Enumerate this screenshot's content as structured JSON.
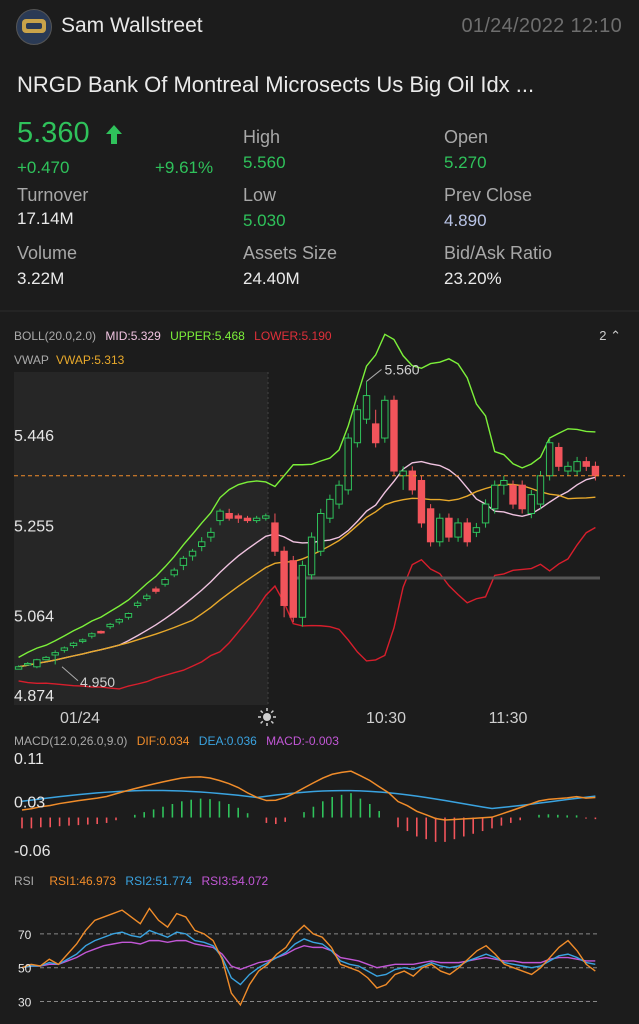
{
  "header": {
    "username": "Sam Wallstreet",
    "datetime": "01/24/2022  12:10"
  },
  "stock": {
    "symbol_name": "NRGD  Bank Of Montreal Microsects Us Big Oil Idx ...",
    "price": "5.360",
    "change": "+0.470",
    "change_pct": "+9.61%"
  },
  "stats": {
    "turnover_label": "Turnover",
    "turnover": "17.14M",
    "volume_label": "Volume",
    "volume": "3.22M",
    "high_label": "High",
    "high": "5.560",
    "low_label": "Low",
    "low": "5.030",
    "assets_label": "Assets Size",
    "assets": "24.40M",
    "open_label": "Open",
    "open": "5.270",
    "prev_close_label": "Prev Close",
    "prev_close": "4.890",
    "bidask_label": "Bid/Ask Ratio",
    "bidask": "23.20%"
  },
  "indicators": {
    "boll": {
      "name": "BOLL(20.0,2.0)",
      "mid": "MID:5.329",
      "upper": "UPPER:5.468",
      "lower": "LOWER:5.190"
    },
    "vwap": {
      "name": "VWAP",
      "value": "VWAP:5.313"
    },
    "macd": {
      "name": "MACD(12.0,26.0,9.0)",
      "dif": "DIF:0.034",
      "dea": "DEA:0.036",
      "macd": "MACD:-0.003"
    },
    "rsi": {
      "name": "RSI",
      "rsi1": "RSI1:46.973",
      "rsi2": "RSI2:51.774",
      "rsi3": "RSI3:54.072"
    },
    "collapse_label": "2"
  },
  "colors": {
    "up": "#2fc25b",
    "down": "#f2545b",
    "upper": "#7cf03a",
    "lower": "#d81e2c",
    "mid": "#f0c3e0",
    "vwap": "#e8a92b",
    "dif": "#f08c2a",
    "dea": "#3aa3e0",
    "macd": "#c257d6"
  },
  "chart_data": [
    {
      "type": "candlestick",
      "title": "",
      "y_ticks": [
        "5.446",
        "5.255",
        "5.064",
        "4.874"
      ],
      "x_ticks": [
        "01/24",
        "10:30",
        "11:30"
      ],
      "ylim": [
        4.874,
        5.58
      ],
      "max_label": "5.560",
      "min_label": "4.950",
      "last_price": 5.36,
      "candles": [
        {
          "o": 4.95,
          "c": 4.955,
          "h": 4.958,
          "l": 4.95
        },
        {
          "o": 4.96,
          "c": 4.962,
          "h": 4.965,
          "l": 4.958
        },
        {
          "o": 4.955,
          "c": 4.97,
          "h": 4.972,
          "l": 4.952
        },
        {
          "o": 4.97,
          "c": 4.975,
          "h": 4.978,
          "l": 4.968
        },
        {
          "o": 4.98,
          "c": 4.985,
          "h": 4.99,
          "l": 4.96
        },
        {
          "o": 4.99,
          "c": 4.995,
          "h": 4.998,
          "l": 4.985
        },
        {
          "o": 5.0,
          "c": 5.005,
          "h": 5.008,
          "l": 4.995
        },
        {
          "o": 5.01,
          "c": 5.012,
          "h": 5.015,
          "l": 5.005
        },
        {
          "o": 5.02,
          "c": 5.025,
          "h": 5.028,
          "l": 5.015
        },
        {
          "o": 5.03,
          "c": 5.028,
          "h": 5.032,
          "l": 5.025
        },
        {
          "o": 5.04,
          "c": 5.045,
          "h": 5.048,
          "l": 5.035
        },
        {
          "o": 5.05,
          "c": 5.055,
          "h": 5.058,
          "l": 5.045
        },
        {
          "o": 5.06,
          "c": 5.068,
          "h": 5.07,
          "l": 5.055
        },
        {
          "o": 5.085,
          "c": 5.09,
          "h": 5.095,
          "l": 5.08
        },
        {
          "o": 5.1,
          "c": 5.105,
          "h": 5.11,
          "l": 5.095
        },
        {
          "o": 5.12,
          "c": 5.115,
          "h": 5.125,
          "l": 5.11
        },
        {
          "o": 5.13,
          "c": 5.14,
          "h": 5.145,
          "l": 5.125
        },
        {
          "o": 5.15,
          "c": 5.16,
          "h": 5.165,
          "l": 5.145
        },
        {
          "o": 5.17,
          "c": 5.185,
          "h": 5.19,
          "l": 5.16
        },
        {
          "o": 5.19,
          "c": 5.2,
          "h": 5.205,
          "l": 5.18
        },
        {
          "o": 5.21,
          "c": 5.22,
          "h": 5.23,
          "l": 5.2
        },
        {
          "o": 5.23,
          "c": 5.24,
          "h": 5.25,
          "l": 5.22
        },
        {
          "o": 5.265,
          "c": 5.285,
          "h": 5.29,
          "l": 5.255
        },
        {
          "o": 5.28,
          "c": 5.27,
          "h": 5.29,
          "l": 5.265
        },
        {
          "o": 5.275,
          "c": 5.27,
          "h": 5.28,
          "l": 5.26
        },
        {
          "o": 5.27,
          "c": 5.265,
          "h": 5.275,
          "l": 5.26
        },
        {
          "o": 5.265,
          "c": 5.27,
          "h": 5.275,
          "l": 5.26
        },
        {
          "o": 5.27,
          "c": 5.275,
          "h": 5.28,
          "l": 5.265
        },
        {
          "o": 5.26,
          "c": 5.2,
          "h": 5.28,
          "l": 5.19
        },
        {
          "o": 5.2,
          "c": 5.085,
          "h": 5.21,
          "l": 5.06
        },
        {
          "o": 5.18,
          "c": 5.06,
          "h": 5.19,
          "l": 5.05
        },
        {
          "o": 5.06,
          "c": 5.17,
          "h": 5.18,
          "l": 5.04
        },
        {
          "o": 5.15,
          "c": 5.23,
          "h": 5.24,
          "l": 5.14
        },
        {
          "o": 5.2,
          "c": 5.28,
          "h": 5.29,
          "l": 5.19
        },
        {
          "o": 5.27,
          "c": 5.31,
          "h": 5.32,
          "l": 5.26
        },
        {
          "o": 5.3,
          "c": 5.34,
          "h": 5.35,
          "l": 5.29
        },
        {
          "o": 5.33,
          "c": 5.44,
          "h": 5.45,
          "l": 5.32
        },
        {
          "o": 5.43,
          "c": 5.5,
          "h": 5.51,
          "l": 5.42
        },
        {
          "o": 5.48,
          "c": 5.53,
          "h": 5.56,
          "l": 5.47
        },
        {
          "o": 5.47,
          "c": 5.43,
          "h": 5.5,
          "l": 5.42
        },
        {
          "o": 5.44,
          "c": 5.52,
          "h": 5.53,
          "l": 5.43
        },
        {
          "o": 5.52,
          "c": 5.37,
          "h": 5.53,
          "l": 5.36
        },
        {
          "o": 5.36,
          "c": 5.37,
          "h": 5.38,
          "l": 5.33
        },
        {
          "o": 5.37,
          "c": 5.33,
          "h": 5.38,
          "l": 5.32
        },
        {
          "o": 5.35,
          "c": 5.26,
          "h": 5.36,
          "l": 5.25
        },
        {
          "o": 5.29,
          "c": 5.22,
          "h": 5.3,
          "l": 5.21
        },
        {
          "o": 5.22,
          "c": 5.27,
          "h": 5.28,
          "l": 5.21
        },
        {
          "o": 5.27,
          "c": 5.23,
          "h": 5.28,
          "l": 5.22
        },
        {
          "o": 5.23,
          "c": 5.26,
          "h": 5.27,
          "l": 5.22
        },
        {
          "o": 5.26,
          "c": 5.22,
          "h": 5.27,
          "l": 5.21
        },
        {
          "o": 5.24,
          "c": 5.25,
          "h": 5.26,
          "l": 5.23
        },
        {
          "o": 5.26,
          "c": 5.3,
          "h": 5.31,
          "l": 5.25
        },
        {
          "o": 5.29,
          "c": 5.34,
          "h": 5.35,
          "l": 5.28
        },
        {
          "o": 5.34,
          "c": 5.35,
          "h": 5.36,
          "l": 5.32
        },
        {
          "o": 5.34,
          "c": 5.3,
          "h": 5.35,
          "l": 5.29
        },
        {
          "o": 5.34,
          "c": 5.29,
          "h": 5.35,
          "l": 5.28
        },
        {
          "o": 5.28,
          "c": 5.32,
          "h": 5.33,
          "l": 5.27
        },
        {
          "o": 5.3,
          "c": 5.36,
          "h": 5.37,
          "l": 5.29
        },
        {
          "o": 5.36,
          "c": 5.43,
          "h": 5.44,
          "l": 5.35
        },
        {
          "o": 5.42,
          "c": 5.38,
          "h": 5.43,
          "l": 5.37
        },
        {
          "o": 5.37,
          "c": 5.38,
          "h": 5.39,
          "l": 5.36
        },
        {
          "o": 5.37,
          "c": 5.39,
          "h": 5.4,
          "l": 5.36
        },
        {
          "o": 5.39,
          "c": 5.38,
          "h": 5.4,
          "l": 5.37
        },
        {
          "o": 5.38,
          "c": 5.36,
          "h": 5.39,
          "l": 5.35
        }
      ]
    },
    {
      "type": "bar",
      "title": "MACD",
      "y_ticks": [
        "0.11",
        "0.03",
        "-0.06"
      ],
      "ylim": [
        -0.06,
        0.11
      ],
      "macd_hist": [
        -0.02,
        -0.02,
        -0.018,
        -0.018,
        -0.016,
        -0.015,
        -0.014,
        -0.013,
        -0.012,
        -0.01,
        -0.005,
        0.0,
        0.005,
        0.01,
        0.015,
        0.02,
        0.025,
        0.03,
        0.033,
        0.035,
        0.034,
        0.03,
        0.025,
        0.018,
        0.008,
        0.0,
        -0.01,
        -0.012,
        -0.008,
        0.0,
        0.01,
        0.02,
        0.03,
        0.038,
        0.042,
        0.045,
        0.035,
        0.025,
        0.012,
        0.0,
        -0.018,
        -0.025,
        -0.035,
        -0.04,
        -0.045,
        -0.045,
        -0.04,
        -0.035,
        -0.03,
        -0.025,
        -0.02,
        -0.015,
        -0.01,
        -0.005,
        0.0,
        0.005,
        0.006,
        0.005,
        0.004,
        0.004,
        -0.002,
        -0.003
      ]
    },
    {
      "type": "line",
      "title": "RSI",
      "y_ticks": [
        "70",
        "50",
        "30"
      ],
      "ylim": [
        25,
        90
      ],
      "rsi1": [
        50,
        52,
        51,
        55,
        52,
        58,
        64,
        72,
        78,
        80,
        82,
        84,
        80,
        76,
        85,
        78,
        74,
        82,
        80,
        72,
        70,
        66,
        55,
        35,
        28,
        40,
        48,
        52,
        58,
        62,
        70,
        75,
        70,
        68,
        62,
        52,
        50,
        48,
        44,
        38,
        40,
        46,
        48,
        45,
        50,
        52,
        48,
        46,
        50,
        55,
        60,
        63,
        58,
        52,
        50,
        48,
        46,
        50,
        56,
        62,
        66,
        60,
        52,
        48
      ],
      "rsi2": [
        50,
        51,
        51,
        53,
        52,
        55,
        58,
        63,
        66,
        68,
        70,
        71,
        69,
        68,
        72,
        70,
        68,
        71,
        70,
        66,
        65,
        63,
        56,
        44,
        40,
        46,
        50,
        53,
        56,
        59,
        64,
        67,
        65,
        64,
        60,
        54,
        52,
        51,
        48,
        45,
        46,
        49,
        50,
        49,
        51,
        53,
        51,
        50,
        51,
        54,
        56,
        58,
        56,
        53,
        52,
        51,
        50,
        51,
        54,
        57,
        58,
        56,
        53,
        52
      ],
      "rsi3": [
        50,
        51,
        51,
        52,
        52,
        54,
        56,
        59,
        61,
        63,
        64,
        65,
        65,
        64,
        66,
        66,
        65,
        66,
        66,
        64,
        63,
        62,
        58,
        51,
        49,
        51,
        53,
        54,
        56,
        58,
        61,
        63,
        62,
        62,
        60,
        56,
        55,
        54,
        52,
        50,
        51,
        52,
        52,
        52,
        53,
        54,
        53,
        53,
        53,
        54,
        55,
        56,
        55,
        54,
        54,
        53,
        53,
        53,
        55,
        56,
        56,
        55,
        54,
        54
      ]
    }
  ]
}
